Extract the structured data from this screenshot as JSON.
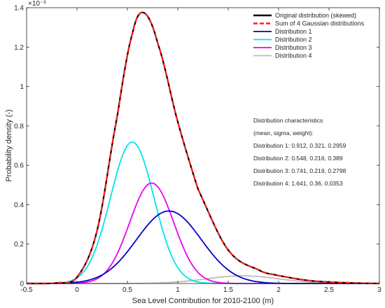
{
  "chart_data": {
    "type": "line",
    "xlabel": "Sea Level Contribution for 2010-2100 (m)",
    "ylabel": "Probability density (-)",
    "y_exponent_label": "×10⁻³",
    "xlim": [
      -0.5,
      3
    ],
    "ylim": [
      0,
      1.4
    ],
    "xticks": [
      "-0.5",
      "0",
      "0.5",
      "1",
      "1.5",
      "2",
      "2.5",
      "3"
    ],
    "yticks": [
      "0",
      "0.2",
      "0.4",
      "0.6",
      "0.8",
      "1",
      "1.2",
      "1.4"
    ],
    "legend_position": "top-right",
    "series": [
      {
        "name": "Original distribution (skewed)",
        "color": "#000000",
        "style": "solid",
        "x": [
          -0.5,
          -0.2,
          0,
          0.2,
          0.4,
          0.55,
          0.66,
          0.8,
          1.0,
          1.2,
          1.5,
          1.8,
          2.0,
          2.3,
          2.6,
          3.0
        ],
        "y": [
          0,
          0.003,
          0.032,
          0.27,
          0.85,
          1.27,
          1.375,
          1.22,
          0.82,
          0.48,
          0.17,
          0.07,
          0.04,
          0.015,
          0.005,
          0
        ]
      },
      {
        "name": "Sum of 4 Gaussian distributions",
        "color": "#ff2020",
        "style": "dashed",
        "x": [
          -0.5,
          -0.2,
          0,
          0.2,
          0.4,
          0.55,
          0.66,
          0.8,
          1.0,
          1.2,
          1.5,
          1.8,
          2.0,
          2.3,
          2.6,
          3.0
        ],
        "y": [
          0,
          0.003,
          0.032,
          0.27,
          0.85,
          1.27,
          1.375,
          1.22,
          0.82,
          0.48,
          0.17,
          0.07,
          0.04,
          0.015,
          0.005,
          0
        ]
      },
      {
        "name": "Distribution 1",
        "color": "#0000cc",
        "style": "solid",
        "mean": 0.912,
        "sigma": 0.321,
        "peak": 0.368
      },
      {
        "name": "Distribution 2",
        "color": "#00e5ee",
        "style": "solid",
        "mean": 0.548,
        "sigma": 0.216,
        "peak": 0.718
      },
      {
        "name": "Distribution 3",
        "color": "#ee00ee",
        "style": "solid",
        "mean": 0.741,
        "sigma": 0.219,
        "peak": 0.51
      },
      {
        "name": "Distribution 4",
        "color": "#bbbbbb",
        "style": "solid",
        "mean": 1.641,
        "sigma": 0.36,
        "peak": 0.039
      }
    ],
    "annotations": [
      "Distribution characteristics",
      "(mean, sigma, weight):",
      "Distribution 1: 0.912, 0.321, 0.2959",
      "Distribution 2: 0.548, 0.216, 0.389",
      "Distribution 3: 0.741, 0.219, 0.2798",
      "Distribution 4: 1.641, 0.36, 0.0353"
    ]
  }
}
